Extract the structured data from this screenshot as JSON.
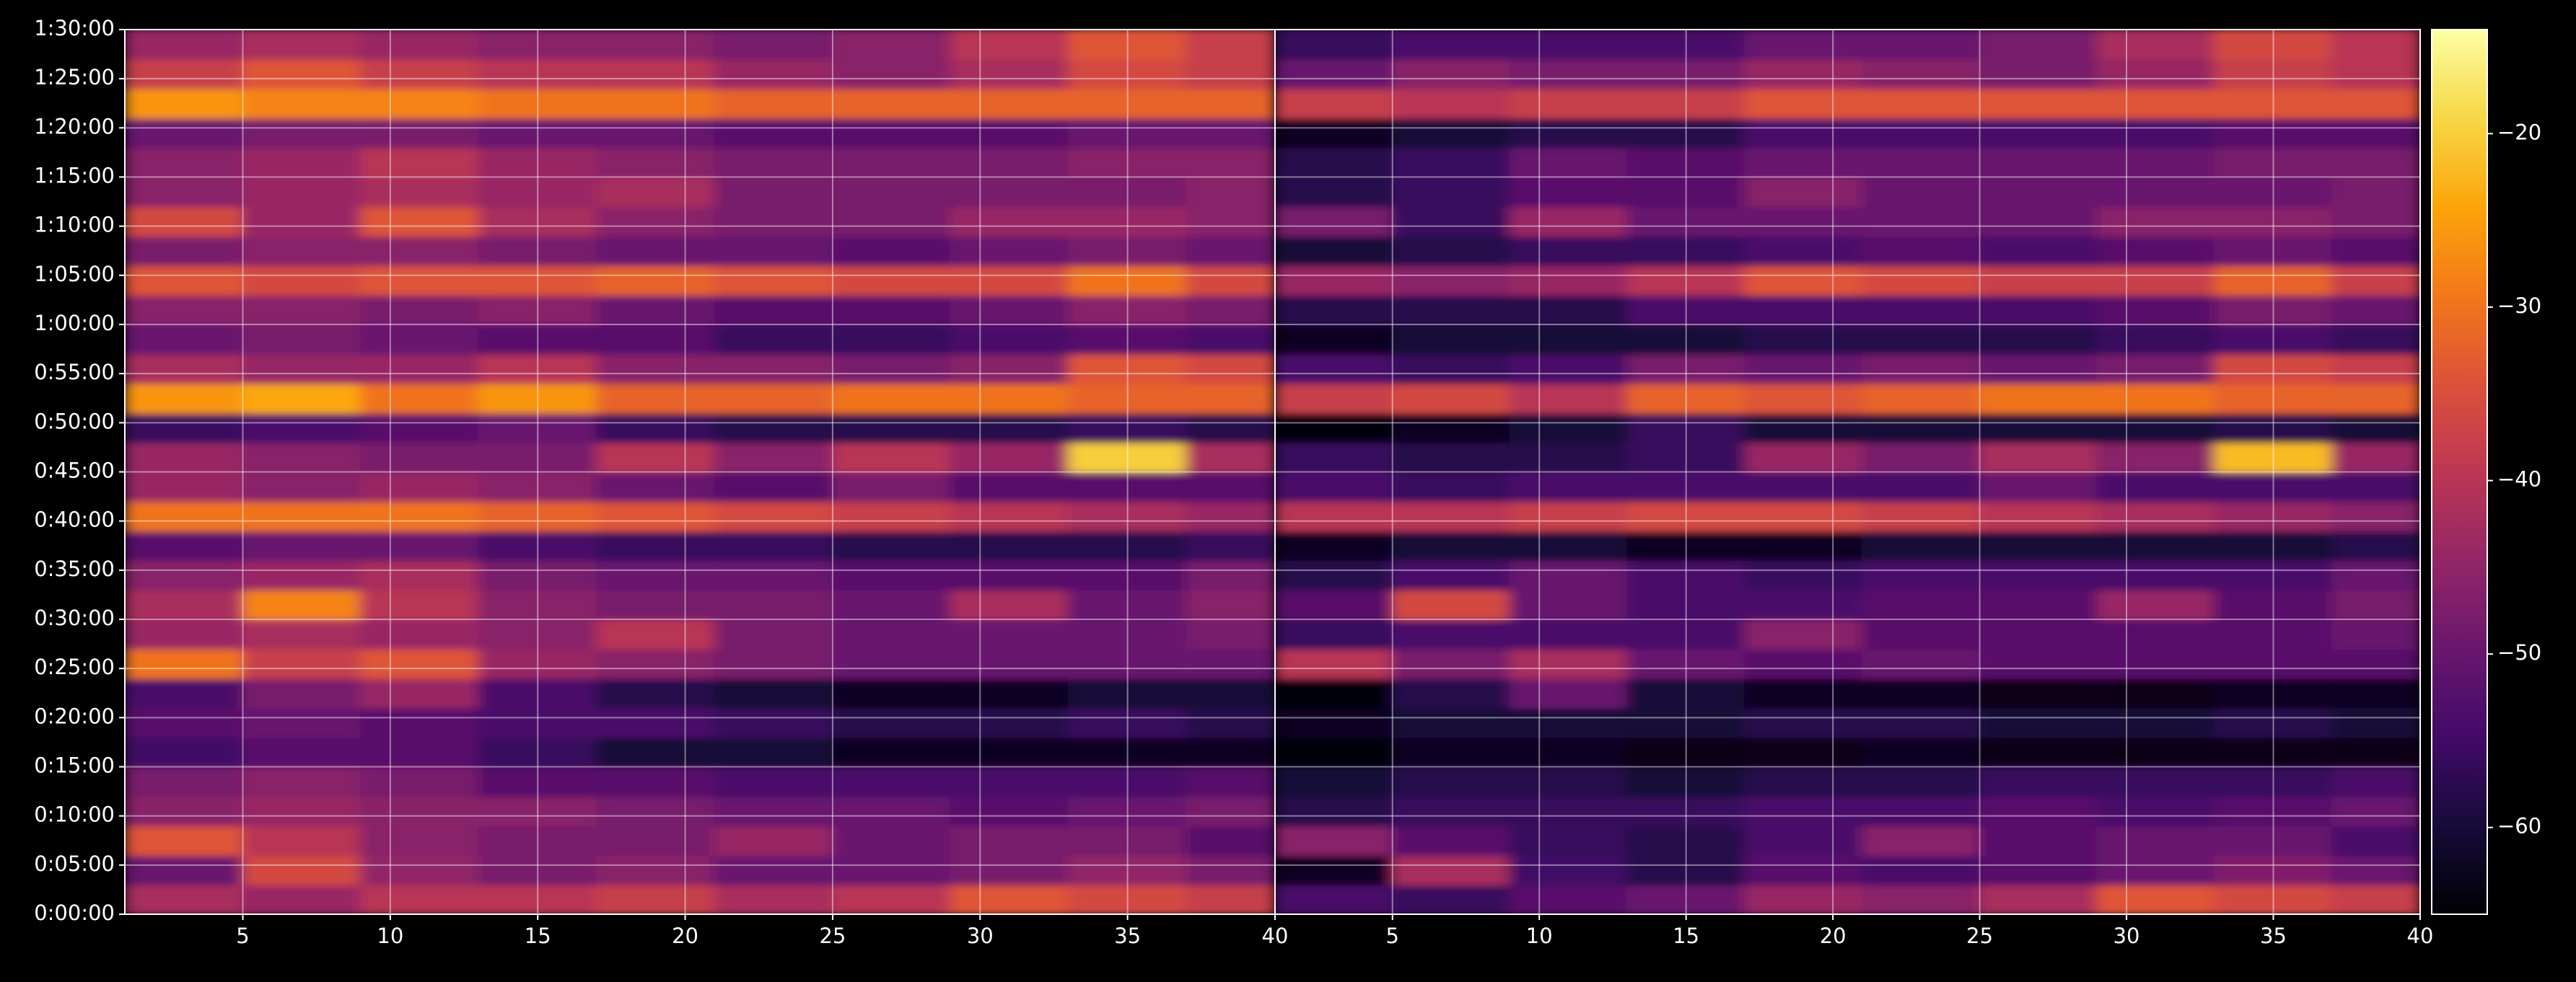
{
  "chart_data": {
    "type": "heatmap",
    "colormap": "inferno",
    "grid": true,
    "xlim": [
      1,
      40
    ],
    "xticks": [
      5,
      10,
      15,
      20,
      25,
      30,
      35,
      40
    ],
    "ylim": [
      0,
      90
    ],
    "yticks": [
      {
        "value": 0,
        "label": "0:00:00"
      },
      {
        "value": 5,
        "label": "0:05:00"
      },
      {
        "value": 10,
        "label": "0:10:00"
      },
      {
        "value": 15,
        "label": "0:15:00"
      },
      {
        "value": 20,
        "label": "0:20:00"
      },
      {
        "value": 25,
        "label": "0:25:00"
      },
      {
        "value": 30,
        "label": "0:30:00"
      },
      {
        "value": 35,
        "label": "0:35:00"
      },
      {
        "value": 40,
        "label": "0:40:00"
      },
      {
        "value": 45,
        "label": "0:45:00"
      },
      {
        "value": 50,
        "label": "0:50:00"
      },
      {
        "value": 55,
        "label": "0:55:00"
      },
      {
        "value": 60,
        "label": "1:00:00"
      },
      {
        "value": 65,
        "label": "1:05:00"
      },
      {
        "value": 70,
        "label": "1:10:00"
      },
      {
        "value": 75,
        "label": "1:15:00"
      },
      {
        "value": 80,
        "label": "1:20:00"
      },
      {
        "value": 85,
        "label": "1:25:00"
      },
      {
        "value": 90,
        "label": "1:30:00"
      }
    ],
    "clim": [
      -65,
      -14
    ],
    "cticks": [
      {
        "value": -60,
        "label": "−60"
      },
      {
        "value": -50,
        "label": "−50"
      },
      {
        "value": -40,
        "label": "−40"
      },
      {
        "value": -30,
        "label": "−30"
      },
      {
        "value": -20,
        "label": "−20"
      }
    ],
    "xbins": [
      1,
      5,
      9,
      13,
      17,
      21,
      25,
      29,
      33,
      37,
      40
    ],
    "ybins": [
      0,
      3,
      6,
      9,
      12,
      15,
      18,
      21,
      24,
      27,
      30,
      33,
      36,
      39,
      42,
      45,
      48,
      51,
      54,
      57,
      60,
      63,
      66,
      69,
      72,
      75,
      78,
      81,
      84,
      87,
      90
    ],
    "panels": [
      {
        "values": [
          [
            -42,
            -44,
            -40,
            -40,
            -38,
            -42,
            -40,
            -34,
            -36,
            -38
          ],
          [
            -50,
            -36,
            -45,
            -48,
            -46,
            -50,
            -50,
            -48,
            -45,
            -48
          ],
          [
            -34,
            -40,
            -46,
            -48,
            -48,
            -44,
            -50,
            -48,
            -48,
            -52
          ],
          [
            -46,
            -44,
            -46,
            -46,
            -48,
            -50,
            -50,
            -52,
            -50,
            -48
          ],
          [
            -48,
            -46,
            -48,
            -52,
            -52,
            -54,
            -54,
            -54,
            -54,
            -52
          ],
          [
            -55,
            -52,
            -52,
            -56,
            -60,
            -60,
            -62,
            -62,
            -62,
            -62
          ],
          [
            -52,
            -50,
            -52,
            -54,
            -54,
            -56,
            -58,
            -58,
            -56,
            -58
          ],
          [
            -54,
            -48,
            -44,
            -54,
            -58,
            -60,
            -62,
            -62,
            -60,
            -60
          ],
          [
            -30,
            -38,
            -34,
            -44,
            -46,
            -48,
            -50,
            -50,
            -50,
            -50
          ],
          [
            -44,
            -42,
            -44,
            -46,
            -40,
            -48,
            -50,
            -50,
            -50,
            -48
          ],
          [
            -42,
            -28,
            -40,
            -46,
            -48,
            -48,
            -50,
            -42,
            -50,
            -46
          ],
          [
            -46,
            -44,
            -42,
            -48,
            -50,
            -50,
            -52,
            -52,
            -52,
            -48
          ],
          [
            -52,
            -50,
            -50,
            -54,
            -56,
            -56,
            -58,
            -58,
            -58,
            -56
          ],
          [
            -30,
            -30,
            -30,
            -32,
            -34,
            -36,
            -38,
            -40,
            -42,
            -44
          ],
          [
            -44,
            -46,
            -44,
            -46,
            -50,
            -52,
            -48,
            -52,
            -52,
            -52
          ],
          [
            -44,
            -46,
            -48,
            -48,
            -40,
            -46,
            -40,
            -44,
            -20,
            -42
          ],
          [
            -56,
            -54,
            -52,
            -50,
            -56,
            -58,
            -58,
            -58,
            -56,
            -58
          ],
          [
            -26,
            -24,
            -30,
            -26,
            -32,
            -32,
            -30,
            -30,
            -32,
            -32
          ],
          [
            -42,
            -44,
            -44,
            -40,
            -46,
            -46,
            -48,
            -46,
            -34,
            -36
          ],
          [
            -50,
            -48,
            -50,
            -52,
            -52,
            -56,
            -56,
            -54,
            -52,
            -54
          ],
          [
            -46,
            -46,
            -48,
            -46,
            -50,
            -52,
            -52,
            -50,
            -46,
            -48
          ],
          [
            -34,
            -36,
            -34,
            -34,
            -32,
            -34,
            -36,
            -36,
            -30,
            -36
          ],
          [
            -48,
            -46,
            -46,
            -48,
            -50,
            -50,
            -52,
            -50,
            -48,
            -50
          ],
          [
            -36,
            -44,
            -34,
            -42,
            -46,
            -48,
            -48,
            -44,
            -44,
            -46
          ],
          [
            -46,
            -44,
            -42,
            -44,
            -42,
            -48,
            -48,
            -48,
            -48,
            -46
          ],
          [
            -46,
            -44,
            -40,
            -44,
            -46,
            -48,
            -48,
            -48,
            -46,
            -46
          ],
          [
            -50,
            -48,
            -48,
            -50,
            -50,
            -52,
            -52,
            -52,
            -50,
            -50
          ],
          [
            -26,
            -28,
            -28,
            -30,
            -30,
            -32,
            -32,
            -32,
            -32,
            -32
          ],
          [
            -38,
            -34,
            -38,
            -40,
            -40,
            -44,
            -46,
            -42,
            -36,
            -38
          ],
          [
            -44,
            -42,
            -44,
            -46,
            -46,
            -48,
            -46,
            -40,
            -34,
            -38
          ]
        ]
      },
      {
        "values": [
          [
            -54,
            -56,
            -52,
            -50,
            -44,
            -46,
            -42,
            -34,
            -36,
            -38
          ],
          [
            -62,
            -42,
            -55,
            -58,
            -52,
            -54,
            -52,
            -50,
            -47,
            -50
          ],
          [
            -46,
            -52,
            -56,
            -58,
            -54,
            -46,
            -52,
            -50,
            -50,
            -54
          ],
          [
            -58,
            -56,
            -56,
            -56,
            -54,
            -54,
            -52,
            -54,
            -52,
            -50
          ],
          [
            -60,
            -58,
            -58,
            -60,
            -58,
            -58,
            -56,
            -56,
            -56,
            -54
          ],
          [
            -64,
            -62,
            -62,
            -63,
            -63,
            -62,
            -63,
            -63,
            -63,
            -63
          ],
          [
            -62,
            -60,
            -60,
            -60,
            -58,
            -58,
            -60,
            -60,
            -58,
            -60
          ],
          [
            -64,
            -58,
            -50,
            -60,
            -62,
            -62,
            -63,
            -63,
            -62,
            -62
          ],
          [
            -40,
            -48,
            -42,
            -50,
            -52,
            -50,
            -52,
            -52,
            -52,
            -52
          ],
          [
            -56,
            -54,
            -54,
            -54,
            -46,
            -52,
            -52,
            -52,
            -52,
            -50
          ],
          [
            -52,
            -36,
            -50,
            -54,
            -54,
            -52,
            -52,
            -44,
            -52,
            -48
          ],
          [
            -58,
            -54,
            -50,
            -54,
            -56,
            -54,
            -54,
            -54,
            -54,
            -50
          ],
          [
            -62,
            -60,
            -60,
            -62,
            -62,
            -60,
            -60,
            -60,
            -60,
            -58
          ],
          [
            -40,
            -40,
            -38,
            -36,
            -36,
            -38,
            -40,
            -42,
            -44,
            -46
          ],
          [
            -54,
            -56,
            -54,
            -54,
            -54,
            -54,
            -50,
            -54,
            -54,
            -54
          ],
          [
            -56,
            -58,
            -58,
            -56,
            -44,
            -48,
            -42,
            -46,
            -22,
            -44
          ],
          [
            -64,
            -62,
            -60,
            -56,
            -60,
            -60,
            -60,
            -60,
            -58,
            -60
          ],
          [
            -38,
            -36,
            -40,
            -32,
            -34,
            -32,
            -30,
            -30,
            -32,
            -32
          ],
          [
            -54,
            -56,
            -54,
            -48,
            -50,
            -48,
            -50,
            -48,
            -36,
            -38
          ],
          [
            -62,
            -60,
            -60,
            -60,
            -58,
            -58,
            -58,
            -56,
            -54,
            -56
          ],
          [
            -58,
            -58,
            -58,
            -54,
            -54,
            -54,
            -54,
            -52,
            -48,
            -50
          ],
          [
            -44,
            -46,
            -44,
            -40,
            -34,
            -36,
            -38,
            -38,
            -32,
            -38
          ],
          [
            -60,
            -58,
            -56,
            -56,
            -54,
            -52,
            -54,
            -52,
            -50,
            -52
          ],
          [
            -48,
            -56,
            -44,
            -50,
            -50,
            -50,
            -50,
            -46,
            -46,
            -48
          ],
          [
            -58,
            -56,
            -52,
            -52,
            -46,
            -50,
            -50,
            -50,
            -50,
            -48
          ],
          [
            -58,
            -56,
            -50,
            -52,
            -50,
            -50,
            -50,
            -50,
            -48,
            -48
          ],
          [
            -62,
            -60,
            -58,
            -58,
            -54,
            -54,
            -54,
            -54,
            -52,
            -52
          ],
          [
            -38,
            -40,
            -38,
            -38,
            -34,
            -34,
            -34,
            -34,
            -34,
            -34
          ],
          [
            -50,
            -46,
            -48,
            -48,
            -44,
            -46,
            -48,
            -44,
            -38,
            -40
          ],
          [
            -56,
            -54,
            -54,
            -54,
            -50,
            -50,
            -48,
            -42,
            -36,
            -40
          ]
        ]
      }
    ]
  }
}
